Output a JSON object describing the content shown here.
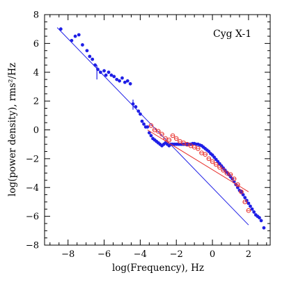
{
  "chart_data": {
    "type": "scatter",
    "xlabel": "log(Frequency), Hz",
    "ylabel": "log(power density), rms²/Hz",
    "xlim": [
      -9.3,
      3.2
    ],
    "ylim": [
      -8,
      8
    ],
    "x_ticks": [
      -8,
      -6,
      -4,
      -2,
      0,
      2
    ],
    "x_tick_labels": [
      "−8",
      "−6",
      "−4",
      "−2",
      "0",
      "2"
    ],
    "y_ticks": [
      -8,
      -6,
      -4,
      -2,
      0,
      2,
      4,
      6,
      8
    ],
    "y_tick_labels": [
      "−8",
      "−6",
      "−4",
      "−2",
      "0",
      "2",
      "4",
      "6",
      "8"
    ],
    "annotation": "Cyg X-1",
    "colors": {
      "blue": "#1f1fe6",
      "red": "#e8322e",
      "axis": "#000000"
    },
    "series": [
      {
        "marker": "filled-circle",
        "color": "#1f1fe6",
        "x": [
          -8.4,
          -7.8,
          -7.6,
          -7.4,
          -7.2,
          -6.95,
          -6.8,
          -6.65,
          -6.5,
          -6.35,
          -6.2,
          -6.0,
          -5.9,
          -5.75,
          -5.6,
          -5.45,
          -5.3,
          -5.15,
          -5.0,
          -4.85,
          -4.7,
          -4.55,
          -4.4,
          -4.25,
          -4.1,
          -4.0,
          -3.9,
          -3.8,
          -3.7,
          -3.6,
          -3.5,
          -3.4,
          -3.3,
          -3.2,
          -3.1,
          -3.0,
          -2.9,
          -2.8,
          -2.7,
          -2.6,
          -2.5,
          -2.4,
          -2.3,
          -2.2,
          -2.1,
          -2.0,
          -1.9,
          -1.8,
          -1.7,
          -1.6,
          -1.5,
          -1.4,
          -1.3,
          -1.2,
          -1.1,
          -1.0,
          -0.9,
          -0.8,
          -0.7,
          -0.6,
          -0.5,
          -0.4,
          -0.3,
          -0.2,
          -0.1,
          0.0,
          0.1,
          0.2,
          0.3,
          0.4,
          0.5,
          0.6,
          0.7,
          0.8,
          0.9,
          1.0,
          1.1,
          1.2,
          1.3,
          1.4,
          1.5,
          1.6,
          1.7,
          1.8,
          1.9,
          2.0,
          2.1,
          2.2,
          2.3,
          2.4,
          2.5,
          2.6,
          2.7,
          2.85
        ],
        "y": [
          7.0,
          6.2,
          6.5,
          6.6,
          5.9,
          5.5,
          5.1,
          4.9,
          4.5,
          4.2,
          4.0,
          4.1,
          3.8,
          4.0,
          3.8,
          3.7,
          3.5,
          3.4,
          3.6,
          3.3,
          3.4,
          3.2,
          1.8,
          1.6,
          1.3,
          1.1,
          0.6,
          0.4,
          0.2,
          0.2,
          -0.2,
          -0.4,
          -0.6,
          -0.7,
          -0.8,
          -0.9,
          -1.0,
          -1.1,
          -1.0,
          -0.9,
          -1.0,
          -1.1,
          -1.0,
          -1.0,
          -1.0,
          -1.0,
          -1.0,
          -1.0,
          -1.0,
          -1.0,
          -1.0,
          -1.0,
          -1.0,
          -1.0,
          -0.95,
          -0.95,
          -1.0,
          -1.0,
          -1.05,
          -1.1,
          -1.2,
          -1.3,
          -1.4,
          -1.5,
          -1.65,
          -1.75,
          -1.9,
          -2.05,
          -2.2,
          -2.35,
          -2.5,
          -2.65,
          -2.8,
          -2.95,
          -3.1,
          -3.25,
          -3.4,
          -3.6,
          -3.8,
          -4.0,
          -4.2,
          -4.3,
          -4.5,
          -4.7,
          -4.9,
          -5.1,
          -5.3,
          -5.5,
          -5.7,
          -5.9,
          -6.0,
          -6.1,
          -6.3,
          -6.8
        ],
        "error_bars": [
          {
            "x": -6.4,
            "y": 4.0,
            "low": 3.5,
            "high": 4.5
          },
          {
            "x": -4.4,
            "y": 1.8,
            "low": 1.4,
            "high": 2.1
          }
        ],
        "fit_line": {
          "x": [
            -8.6,
            2.0
          ],
          "y": [
            7.1,
            -6.6
          ]
        }
      },
      {
        "marker": "open-circle",
        "color": "#e8322e",
        "x": [
          -3.4,
          -3.2,
          -3.0,
          -2.8,
          -2.6,
          -2.4,
          -2.2,
          -2.0,
          -1.8,
          -1.6,
          -1.4,
          -1.2,
          -1.0,
          -0.8,
          -0.6,
          -0.4,
          -0.2,
          0.0,
          0.2,
          0.4,
          0.6,
          0.8,
          1.0,
          1.2,
          1.4,
          1.6,
          1.8,
          2.0
        ],
        "y": [
          0.3,
          0.0,
          -0.1,
          -0.3,
          -0.6,
          -0.7,
          -0.4,
          -0.6,
          -0.8,
          -0.9,
          -1.0,
          -1.1,
          -1.2,
          -1.3,
          -1.6,
          -1.7,
          -2.0,
          -2.2,
          -2.4,
          -2.6,
          -2.8,
          -3.0,
          -3.1,
          -3.4,
          -3.8,
          -4.3,
          -5.0,
          -5.6
        ],
        "fit_line": {
          "x": [
            -3.6,
            2.0
          ],
          "y": [
            0.0,
            -4.3
          ]
        }
      }
    ]
  }
}
